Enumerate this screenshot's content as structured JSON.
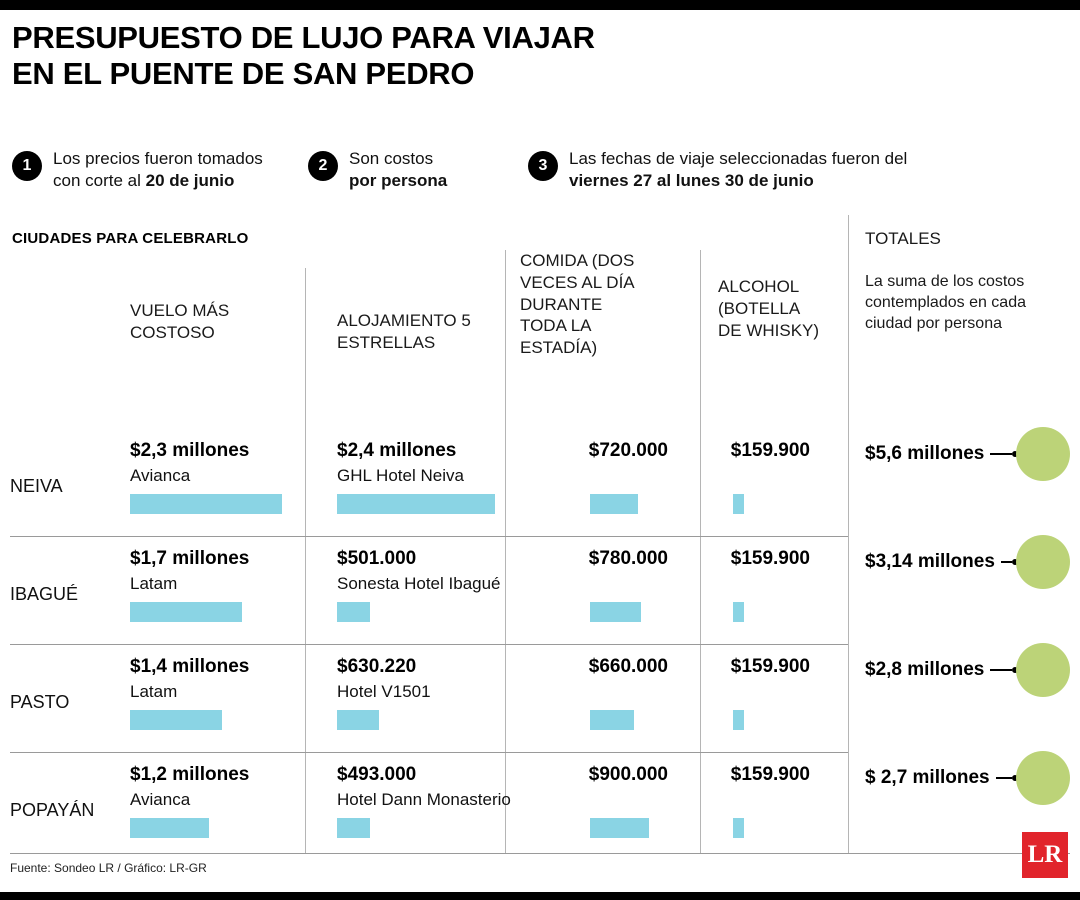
{
  "header": {
    "title_line1": "PRESUPUESTO DE LUJO PARA VIAJAR",
    "title_line2": "EN EL PUENTE DE SAN PEDRO"
  },
  "notes": [
    {
      "number": "1",
      "line1": "Los precios fueron tomados",
      "line2_plain": "con corte al ",
      "line2_bold": "20 de junio"
    },
    {
      "number": "2",
      "line1": "Son costos",
      "line2_plain": "",
      "line2_bold": "por persona"
    },
    {
      "number": "3",
      "line1": "Las fechas de viaje seleccionadas fueron del",
      "line2_plain": "",
      "line2_bold": "viernes 27 al lunes 30 de junio"
    }
  ],
  "table": {
    "section_title": "CIUDADES PARA CELEBRARLO",
    "columns": {
      "vuelo": "VUELO MÁS COSTOSO",
      "hotel": "ALOJAMIENTO 5 ESTRELLAS",
      "comida": "COMIDA (DOS VECES AL DÍA DURANTE TODA LA ESTADÍA)",
      "alcohol": "ALCOHOL (BOTELLA DE WHISKY)",
      "totales": "TOTALES",
      "totales_sub": "La suma de los costos contemplados en cada ciudad por persona"
    },
    "rows": [
      {
        "city": "NEIVA",
        "vuelo": {
          "amount": "$2,3 millones",
          "sub": "Avianca",
          "value_m": 2.3
        },
        "hotel": {
          "amount": "$2,4 millones",
          "sub": "GHL Hotel Neiva",
          "value_m": 2.4
        },
        "comida": {
          "amount": "$720.000",
          "value_m": 0.72
        },
        "alcohol": {
          "amount": "$159.900",
          "value_m": 0.1599
        },
        "total": "$5,6 millones"
      },
      {
        "city": "IBAGUÉ",
        "vuelo": {
          "amount": "$1,7 millones",
          "sub": "Latam",
          "value_m": 1.7
        },
        "hotel": {
          "amount": "$501.000",
          "sub": "Sonesta Hotel Ibagué",
          "value_m": 0.501
        },
        "comida": {
          "amount": "$780.000",
          "value_m": 0.78
        },
        "alcohol": {
          "amount": "$159.900",
          "value_m": 0.1599
        },
        "total": "$3,14 millones"
      },
      {
        "city": "PASTO",
        "vuelo": {
          "amount": "$1,4 millones",
          "sub": "Latam",
          "value_m": 1.4
        },
        "hotel": {
          "amount": "$630.220",
          "sub": "Hotel V1501",
          "value_m": 0.63022
        },
        "comida": {
          "amount": "$660.000",
          "value_m": 0.66
        },
        "alcohol": {
          "amount": "$159.900",
          "value_m": 0.1599
        },
        "total": "$2,8 millones"
      },
      {
        "city": "POPAYÁN",
        "vuelo": {
          "amount": "$1,2 millones",
          "sub": "Avianca",
          "value_m": 1.2
        },
        "hotel": {
          "amount": "$493.000",
          "sub": "Hotel Dann Monasterio",
          "value_m": 0.493
        },
        "comida": {
          "amount": "$900.000",
          "value_m": 0.9
        },
        "alcohol": {
          "amount": "$159.900",
          "value_m": 0.1599
        },
        "total": "$ 2,7 millones"
      }
    ]
  },
  "footer": {
    "source": "Fuente: Sondeo LR / Gráfico: LR-GR",
    "logo": "LR"
  },
  "colors": {
    "bar_blue": "#8AD4E4",
    "circle_green": "#BCD378",
    "logo_red": "#E1242B"
  },
  "chart_data": {
    "type": "bar",
    "orientation": "horizontal",
    "title": "PRESUPUESTO DE LUJO PARA VIAJAR EN EL PUENTE DE SAN PEDRO",
    "categories": [
      "NEIVA",
      "IBAGUÉ",
      "PASTO",
      "POPAYÁN"
    ],
    "series": [
      {
        "name": "VUELO MÁS COSTOSO",
        "values_cop": [
          2300000,
          1700000,
          1400000,
          1200000
        ],
        "labels": [
          "$2,3 millones",
          "$1,7 millones",
          "$1,4 millones",
          "$1,2 millones"
        ],
        "details": [
          "Avianca",
          "Latam",
          "Latam",
          "Avianca"
        ]
      },
      {
        "name": "ALOJAMIENTO 5 ESTRELLAS",
        "values_cop": [
          2400000,
          501000,
          630220,
          493000
        ],
        "labels": [
          "$2,4 millones",
          "$501.000",
          "$630.220",
          "$493.000"
        ],
        "details": [
          "GHL Hotel Neiva",
          "Sonesta Hotel Ibagué",
          "Hotel V1501",
          "Hotel Dann Monasterio"
        ]
      },
      {
        "name": "COMIDA (DOS VECES AL DÍA DURANTE TODA LA ESTADÍA)",
        "values_cop": [
          720000,
          780000,
          660000,
          900000
        ],
        "labels": [
          "$720.000",
          "$780.000",
          "$660.000",
          "$900.000"
        ]
      },
      {
        "name": "ALCOHOL (BOTELLA DE WHISKY)",
        "values_cop": [
          159900,
          159900,
          159900,
          159900
        ],
        "labels": [
          "$159.900",
          "$159.900",
          "$159.900",
          "$159.900"
        ]
      },
      {
        "name": "TOTALES",
        "values_cop": [
          5600000,
          3140000,
          2800000,
          2700000
        ],
        "labels": [
          "$5,6 millones",
          "$3,14 millones",
          "$2,8 millones",
          "$ 2,7 millones"
        ]
      }
    ],
    "notes": [
      "Los precios fueron tomados con corte al 20 de junio",
      "Son costos por persona",
      "Las fechas de viaje seleccionadas fueron del viernes 27 al lunes 30 de junio"
    ],
    "bar_color": "#8AD4E4",
    "legend_position": "none",
    "grid": false
  }
}
